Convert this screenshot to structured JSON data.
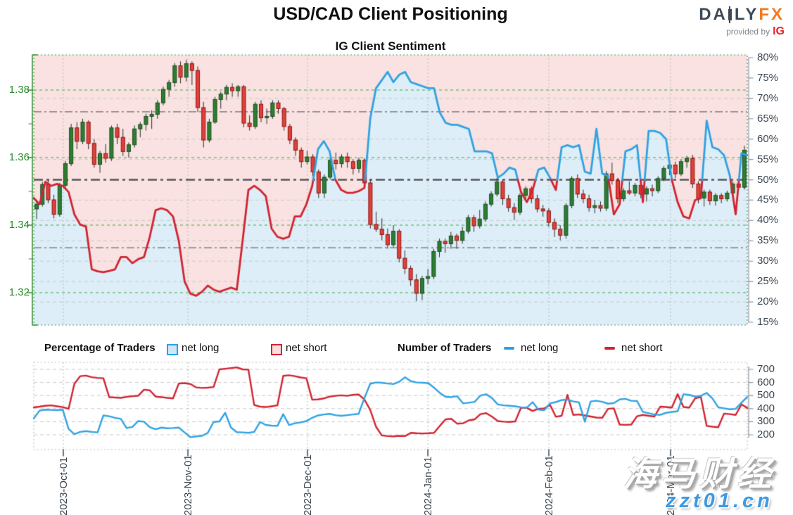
{
  "header": {
    "title": "USD/CAD Client Positioning",
    "subtitle": "IG Client Sentiment",
    "logo": {
      "daily_prefix": "DA",
      "daily_suffix": "LY",
      "fx": "FX",
      "provided_by": "provided by",
      "ig": "IG"
    }
  },
  "legend": {
    "percentage_title": "Percentage of Traders",
    "pct_net_long": "net long",
    "pct_net_short": "net short",
    "number_title": "Number of Traders",
    "num_net_long": "net long",
    "num_net_short": "net short"
  },
  "watermark": {
    "line1": "海马财经",
    "line2": "zzt01.cn"
  },
  "colors": {
    "blue_line": "#2fa2e3",
    "red_line": "#d22330",
    "pink_fill": "#f9e2e1",
    "blue_fill": "#ddeef9",
    "candle_up": "#2e7d32",
    "candle_up_border": "#174d1b",
    "candle_down": "#e0413c",
    "candle_down_border": "#8f120c",
    "wick": "#2b2b2b",
    "grid_green": "#4caf50",
    "grid_gray": "#c9c9c9",
    "frame_green": "#4e9a4e",
    "ref_line": "#6a6a6a",
    "mid_line": "#555555",
    "axis_green": "#2e8b2e",
    "axis_gray": "#8a949c",
    "month_line": "#b9b9b9",
    "text_dark": "#3b4753"
  },
  "chart_data": {
    "type": "candlestick+line",
    "title": "IG Client Sentiment",
    "x_axis": {
      "months": [
        {
          "label": "2023-Oct-01",
          "pos": 0.0414
        },
        {
          "label": "2023-Nov-01",
          "pos": 0.216
        },
        {
          "label": "2023-Dec-01",
          "pos": 0.3836
        },
        {
          "label": "2024-Jan-01",
          "pos": 0.5523
        },
        {
          "label": "2024-Feb-01",
          "pos": 0.7219
        },
        {
          "label": "2024-Mar-01",
          "pos": 0.8925
        }
      ]
    },
    "price_axis": {
      "side": "left",
      "ticks": [
        {
          "label": "1.38",
          "value": 1.38
        },
        {
          "label": "1.36",
          "value": 1.36
        },
        {
          "label": "1.34",
          "value": 1.34
        },
        {
          "label": "1.32",
          "value": 1.32
        }
      ],
      "minor_ticks": [
        1.37,
        1.35,
        1.33
      ],
      "range": [
        1.31,
        1.392
      ]
    },
    "percent_axis": {
      "side": "right",
      "values": [
        80,
        75,
        70,
        65,
        60,
        55,
        50,
        45,
        40,
        35,
        30,
        25,
        20,
        15
      ],
      "suffix": "%",
      "range": [
        14.3,
        80.7
      ]
    },
    "count_axis": {
      "side": "right",
      "values": [
        700,
        600,
        500,
        400,
        300,
        200
      ],
      "range": [
        160,
        755
      ]
    },
    "reference_percent_lines": {
      "mid": 50,
      "upper": 66.7,
      "lower": 33.3
    },
    "gray_grid_percents": [
      70,
      60,
      55,
      45,
      40,
      35,
      30,
      25,
      20
    ],
    "candles_ohlc": [
      [
        1.3448,
        1.347,
        1.3418,
        1.3462
      ],
      [
        1.3462,
        1.3528,
        1.3455,
        1.352
      ],
      [
        1.352,
        1.3533,
        1.3465,
        1.3475
      ],
      [
        1.3475,
        1.349,
        1.342,
        1.3432
      ],
      [
        1.3432,
        1.3525,
        1.3425,
        1.3518
      ],
      [
        1.3518,
        1.359,
        1.351,
        1.3582
      ],
      [
        1.3582,
        1.37,
        1.3575,
        1.3688
      ],
      [
        1.3688,
        1.3705,
        1.3625,
        1.3648
      ],
      [
        1.3648,
        1.3715,
        1.364,
        1.3705
      ],
      [
        1.3705,
        1.371,
        1.3625,
        1.3642
      ],
      [
        1.3642,
        1.3655,
        1.357,
        1.358
      ],
      [
        1.358,
        1.362,
        1.3555,
        1.3612
      ],
      [
        1.3612,
        1.364,
        1.3585,
        1.3598
      ],
      [
        1.3598,
        1.3695,
        1.359,
        1.3688
      ],
      [
        1.3688,
        1.37,
        1.364,
        1.366
      ],
      [
        1.366,
        1.3685,
        1.3605,
        1.3618
      ],
      [
        1.3618,
        1.3645,
        1.36,
        1.3638
      ],
      [
        1.3638,
        1.3695,
        1.363,
        1.3685
      ],
      [
        1.3685,
        1.3705,
        1.366,
        1.3698
      ],
      [
        1.3698,
        1.373,
        1.368,
        1.3722
      ],
      [
        1.3722,
        1.374,
        1.3685,
        1.3728
      ],
      [
        1.3728,
        1.377,
        1.3715,
        1.3762
      ],
      [
        1.3762,
        1.381,
        1.3755,
        1.3802
      ],
      [
        1.3802,
        1.383,
        1.378,
        1.3822
      ],
      [
        1.3822,
        1.388,
        1.381,
        1.3872
      ],
      [
        1.3872,
        1.3885,
        1.382,
        1.3838
      ],
      [
        1.3838,
        1.389,
        1.3825,
        1.3878
      ],
      [
        1.3878,
        1.3885,
        1.3815,
        1.3858
      ],
      [
        1.3858,
        1.387,
        1.3735,
        1.3748
      ],
      [
        1.3748,
        1.3765,
        1.363,
        1.3652
      ],
      [
        1.3652,
        1.3715,
        1.3645,
        1.3705
      ],
      [
        1.3705,
        1.378,
        1.37,
        1.3772
      ],
      [
        1.3772,
        1.3795,
        1.3745,
        1.3788
      ],
      [
        1.3788,
        1.3815,
        1.377,
        1.3808
      ],
      [
        1.3808,
        1.382,
        1.378,
        1.3798
      ],
      [
        1.3798,
        1.3815,
        1.378,
        1.381
      ],
      [
        1.381,
        1.3815,
        1.369,
        1.3702
      ],
      [
        1.3702,
        1.3725,
        1.368,
        1.3692
      ],
      [
        1.3692,
        1.3765,
        1.3685,
        1.3758
      ],
      [
        1.3758,
        1.377,
        1.3705,
        1.3718
      ],
      [
        1.3718,
        1.3745,
        1.37,
        1.3722
      ],
      [
        1.3722,
        1.377,
        1.3715,
        1.3762
      ],
      [
        1.3762,
        1.377,
        1.373,
        1.3745
      ],
      [
        1.3745,
        1.375,
        1.368,
        1.3692
      ],
      [
        1.3692,
        1.37,
        1.364,
        1.3652
      ],
      [
        1.3652,
        1.366,
        1.3605,
        1.3622
      ],
      [
        1.3622,
        1.363,
        1.357,
        1.3588
      ],
      [
        1.3588,
        1.362,
        1.358,
        1.3602
      ],
      [
        1.3602,
        1.361,
        1.3545,
        1.3558
      ],
      [
        1.3558,
        1.3565,
        1.348,
        1.3495
      ],
      [
        1.3495,
        1.355,
        1.348,
        1.3542
      ],
      [
        1.3542,
        1.36,
        1.3535,
        1.3592
      ],
      [
        1.3592,
        1.3615,
        1.3565,
        1.3582
      ],
      [
        1.3582,
        1.361,
        1.357,
        1.3602
      ],
      [
        1.3602,
        1.3615,
        1.357,
        1.3588
      ],
      [
        1.3588,
        1.3595,
        1.355,
        1.3568
      ],
      [
        1.3568,
        1.36,
        1.3555,
        1.3592
      ],
      [
        1.3592,
        1.3598,
        1.351,
        1.3525
      ],
      [
        1.3525,
        1.3535,
        1.339,
        1.3402
      ],
      [
        1.3402,
        1.344,
        1.338,
        1.3388
      ],
      [
        1.3388,
        1.342,
        1.3355,
        1.3372
      ],
      [
        1.3372,
        1.339,
        1.333,
        1.3342
      ],
      [
        1.3342,
        1.34,
        1.3335,
        1.3382
      ],
      [
        1.3382,
        1.3388,
        1.329,
        1.3302
      ],
      [
        1.3302,
        1.3325,
        1.3255,
        1.3272
      ],
      [
        1.3272,
        1.328,
        1.322,
        1.3238
      ],
      [
        1.3238,
        1.3255,
        1.3175,
        1.3198
      ],
      [
        1.3198,
        1.325,
        1.3178,
        1.3242
      ],
      [
        1.3242,
        1.327,
        1.3225,
        1.3248
      ],
      [
        1.3248,
        1.333,
        1.324,
        1.3322
      ],
      [
        1.3322,
        1.336,
        1.3305,
        1.3352
      ],
      [
        1.3352,
        1.336,
        1.3318,
        1.3345
      ],
      [
        1.3345,
        1.338,
        1.333,
        1.3368
      ],
      [
        1.3368,
        1.3375,
        1.333,
        1.3355
      ],
      [
        1.3355,
        1.3395,
        1.3345,
        1.3382
      ],
      [
        1.3382,
        1.343,
        1.3375,
        1.3422
      ],
      [
        1.3422,
        1.343,
        1.338,
        1.3398
      ],
      [
        1.3398,
        1.3445,
        1.339,
        1.3418
      ],
      [
        1.3418,
        1.347,
        1.341,
        1.3462
      ],
      [
        1.3462,
        1.35,
        1.3455,
        1.3492
      ],
      [
        1.3492,
        1.354,
        1.3485,
        1.3528
      ],
      [
        1.3528,
        1.3535,
        1.346,
        1.3478
      ],
      [
        1.3478,
        1.349,
        1.344,
        1.3452
      ],
      [
        1.3452,
        1.3465,
        1.3415,
        1.3438
      ],
      [
        1.3438,
        1.3495,
        1.343,
        1.3488
      ],
      [
        1.3488,
        1.3515,
        1.3475,
        1.3508
      ],
      [
        1.3508,
        1.3515,
        1.3465,
        1.3478
      ],
      [
        1.3478,
        1.349,
        1.3438,
        1.3448
      ],
      [
        1.3448,
        1.346,
        1.3425,
        1.3442
      ],
      [
        1.3442,
        1.345,
        1.3395,
        1.3408
      ],
      [
        1.3408,
        1.342,
        1.3365,
        1.3388
      ],
      [
        1.3388,
        1.34,
        1.3355,
        1.337
      ],
      [
        1.337,
        1.3465,
        1.336,
        1.3458
      ],
      [
        1.3458,
        1.3545,
        1.345,
        1.3538
      ],
      [
        1.3538,
        1.355,
        1.348,
        1.3492
      ],
      [
        1.3492,
        1.3505,
        1.3465,
        1.3478
      ],
      [
        1.3478,
        1.349,
        1.344,
        1.3452
      ],
      [
        1.3452,
        1.3475,
        1.3435,
        1.3458
      ],
      [
        1.3458,
        1.347,
        1.344,
        1.345
      ],
      [
        1.345,
        1.356,
        1.3442,
        1.3552
      ],
      [
        1.3552,
        1.3585,
        1.352,
        1.3532
      ],
      [
        1.3532,
        1.354,
        1.3465,
        1.3478
      ],
      [
        1.3478,
        1.351,
        1.347,
        1.3502
      ],
      [
        1.3502,
        1.353,
        1.349,
        1.3495
      ],
      [
        1.3495,
        1.3525,
        1.3485,
        1.3518
      ],
      [
        1.3518,
        1.3525,
        1.348,
        1.3492
      ],
      [
        1.3492,
        1.3515,
        1.347,
        1.3508
      ],
      [
        1.3508,
        1.352,
        1.3485,
        1.3502
      ],
      [
        1.3502,
        1.3545,
        1.3495,
        1.3538
      ],
      [
        1.3538,
        1.3575,
        1.353,
        1.3568
      ],
      [
        1.3568,
        1.3585,
        1.3548,
        1.3578
      ],
      [
        1.3578,
        1.3588,
        1.354,
        1.3552
      ],
      [
        1.3552,
        1.3595,
        1.3545,
        1.3588
      ],
      [
        1.3588,
        1.3605,
        1.357,
        1.3598
      ],
      [
        1.3598,
        1.3608,
        1.351,
        1.3522
      ],
      [
        1.3522,
        1.353,
        1.3465,
        1.348
      ],
      [
        1.348,
        1.3505,
        1.3455,
        1.3498
      ],
      [
        1.3498,
        1.3505,
        1.346,
        1.3472
      ],
      [
        1.3472,
        1.3495,
        1.3458,
        1.3488
      ],
      [
        1.3488,
        1.3495,
        1.3465,
        1.3478
      ],
      [
        1.3478,
        1.3502,
        1.347,
        1.3495
      ],
      [
        1.3495,
        1.353,
        1.3488,
        1.3522
      ],
      [
        1.3522,
        1.354,
        1.3505,
        1.3512
      ],
      [
        1.3512,
        1.3635,
        1.3505,
        1.3622
      ]
    ],
    "net_long_percent": [
      45.5,
      44,
      49.5,
      48.5,
      49,
      48.5,
      47,
      41.5,
      39,
      38.5,
      28,
      27.5,
      27.3,
      27.6,
      28,
      31,
      31,
      29.5,
      30.5,
      31,
      36,
      42.5,
      43,
      42.5,
      41,
      35,
      25,
      22,
      21.5,
      22.5,
      24,
      23,
      22.5,
      23,
      23.5,
      23,
      35,
      47.5,
      48.5,
      47.5,
      46,
      38,
      36,
      35.5,
      36,
      41,
      41,
      44,
      48.5,
      57.5,
      59.5,
      57,
      50,
      47.5,
      46.8,
      46.8,
      47.2,
      48,
      65,
      72.5,
      74.5,
      76.5,
      74,
      75.8,
      76.5,
      74,
      73.5,
      73,
      72.5,
      72.5,
      66.5,
      64,
      63.5,
      63.5,
      63,
      62.5,
      57,
      57,
      57,
      56.5,
      50.5,
      51.5,
      53,
      52.5,
      47,
      44.5,
      47.5,
      52.5,
      53,
      50.5,
      47.5,
      58,
      58.5,
      58,
      58.5,
      52,
      51.5,
      62.5,
      51.5,
      51,
      41.5,
      44,
      57,
      57.5,
      58.5,
      44.5,
      62,
      62,
      61.5,
      60,
      50,
      44.5,
      41,
      40.5,
      45,
      45.5,
      64.5,
      58,
      57.5,
      56,
      51,
      41.5,
      56.5,
      56
    ],
    "net_long_count": [
      325,
      385,
      392,
      390,
      388,
      392,
      245,
      205,
      222,
      228,
      222,
      218,
      348,
      342,
      330,
      322,
      252,
      260,
      305,
      300,
      258,
      242,
      255,
      250,
      252,
      255,
      218,
      182,
      188,
      192,
      215,
      298,
      302,
      368,
      255,
      220,
      218,
      215,
      222,
      298,
      275,
      270,
      268,
      358,
      275,
      288,
      295,
      305,
      330,
      348,
      355,
      360,
      350,
      345,
      350,
      355,
      360,
      480,
      590,
      600,
      598,
      592,
      588,
      605,
      640,
      610,
      600,
      598,
      595,
      560,
      520,
      490,
      488,
      495,
      440,
      445,
      452,
      500,
      510,
      480,
      432,
      425,
      422,
      418,
      410,
      408,
      450,
      392,
      388,
      440,
      450,
      465,
      470,
      455,
      448,
      300,
      455,
      460,
      452,
      438,
      442,
      470,
      475,
      460,
      458,
      375,
      365,
      355,
      352,
      368,
      375,
      380,
      510,
      505,
      492,
      498,
      520,
      478,
      410,
      402,
      395,
      398,
      445,
      490
    ],
    "net_short_count": [
      410,
      415,
      422,
      425,
      418,
      412,
      398,
      590,
      648,
      652,
      640,
      635,
      632,
      488,
      485,
      482,
      490,
      495,
      498,
      545,
      540,
      492,
      488,
      482,
      478,
      592,
      595,
      588,
      562,
      558,
      560,
      565,
      700,
      705,
      710,
      715,
      700,
      698,
      428,
      415,
      412,
      418,
      425,
      650,
      655,
      648,
      638,
      632,
      468,
      470,
      478,
      492,
      498,
      502,
      498,
      505,
      508,
      470,
      390,
      262,
      195,
      190,
      188,
      192,
      190,
      215,
      212,
      210,
      212,
      215,
      268,
      318,
      322,
      285,
      288,
      310,
      318,
      358,
      365,
      338,
      305,
      300,
      298,
      302,
      408,
      405,
      382,
      398,
      402,
      428,
      338,
      345,
      505,
      352,
      355,
      348,
      340,
      332,
      330,
      398,
      402,
      278,
      276,
      278,
      342,
      352,
      345,
      340,
      415,
      412,
      408,
      510,
      412,
      408,
      478,
      490,
      268,
      262,
      258,
      362,
      358,
      352,
      432,
      405
    ]
  }
}
